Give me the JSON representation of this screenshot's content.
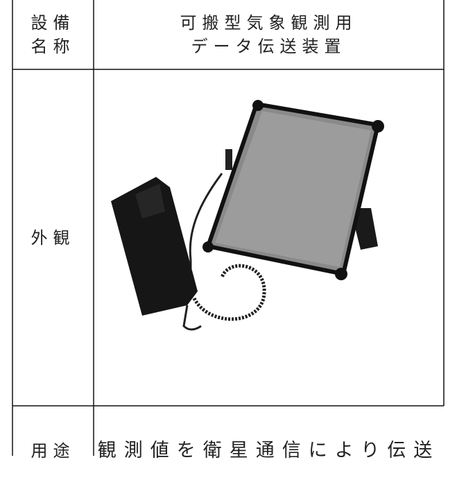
{
  "table": {
    "rows": [
      {
        "label": [
          "設備",
          "名称"
        ],
        "value": [
          "可搬型気象観測用",
          "データ伝送装置"
        ]
      },
      {
        "label": [
          "外観"
        ]
      },
      {
        "label": [
          "用途"
        ],
        "value": [
          "観測値を衛星通信により伝送"
        ]
      }
    ]
  }
}
